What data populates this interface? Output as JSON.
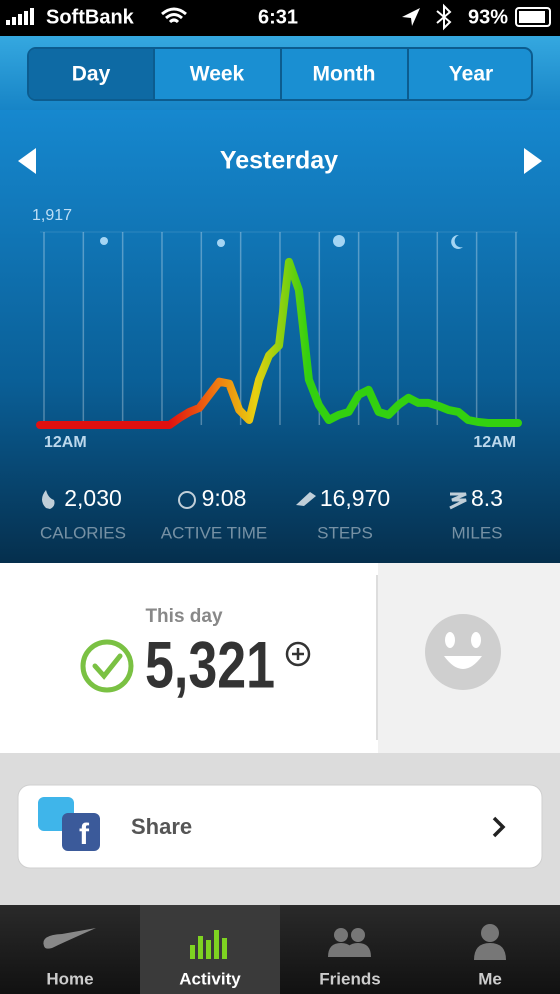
{
  "status_bar": {
    "carrier": "SoftBank",
    "time": "6:31",
    "battery": "93%"
  },
  "tabs": [
    "Day",
    "Week",
    "Month",
    "Year"
  ],
  "period_title": "Yesterday",
  "chart": {
    "type": "line",
    "ylim": [
      0,
      1917
    ],
    "yticks": [
      {
        "value": 1917,
        "label": "1,917"
      }
    ],
    "x_start_label": "12AM",
    "x_end_label": "12AM",
    "values": [
      0,
      0,
      0,
      0,
      0,
      0,
      0,
      0,
      0,
      0,
      0,
      0,
      0,
      0,
      70,
      130,
      170,
      300,
      430,
      410,
      150,
      50,
      450,
      690,
      790,
      1620,
      1340,
      450,
      200,
      50,
      100,
      130,
      300,
      350,
      130,
      100,
      200,
      270,
      220,
      220,
      190,
      150,
      130,
      50,
      30,
      20,
      20,
      20,
      20
    ]
  },
  "stats": [
    {
      "value": "2,030",
      "label": "CALORIES"
    },
    {
      "value": "9:08",
      "label": "ACTIVE TIME"
    },
    {
      "value": "16,970",
      "label": "STEPS"
    },
    {
      "value": "8.3",
      "label": "MILES"
    }
  ],
  "summary": {
    "title": "This day",
    "value": "5,321"
  },
  "share": {
    "label": "Share"
  },
  "nav": [
    "Home",
    "Activity",
    "Friends",
    "Me"
  ]
}
